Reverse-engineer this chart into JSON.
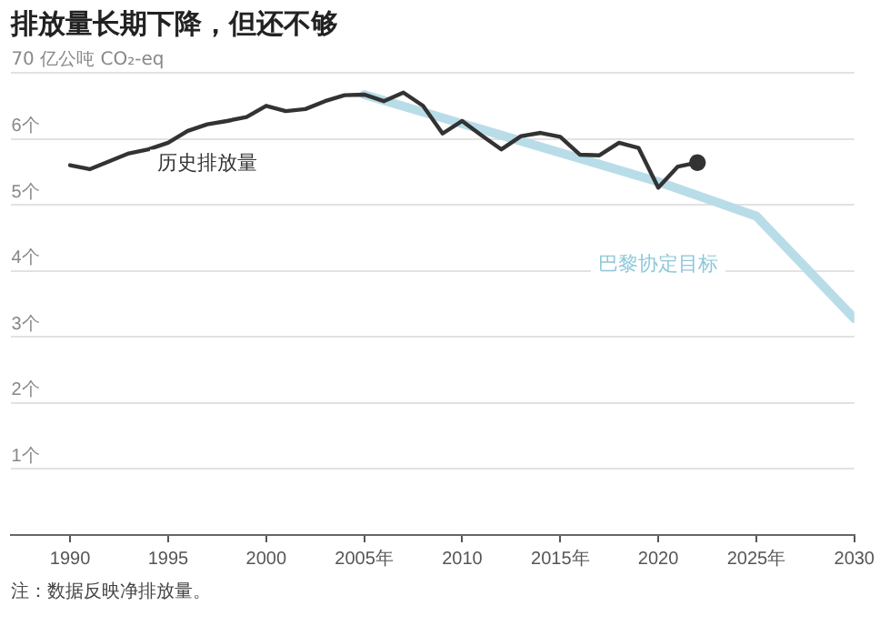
{
  "chart_data": {
    "type": "line",
    "title": "排放量长期下降，但还不够",
    "xlim": [
      1987,
      2030
    ],
    "xticks": [
      1990,
      1995,
      2000,
      {
        "value": 2005,
        "label": "2005年"
      },
      2010,
      {
        "value": 2015,
        "label": "2015年"
      },
      2020,
      {
        "value": 2025,
        "label": "2025年"
      },
      2030
    ],
    "ylim": [
      0,
      7
    ],
    "yticks": [
      {
        "value": 0,
        "label": null
      },
      {
        "value": 1,
        "label": "1个"
      },
      {
        "value": 2,
        "label": "2个"
      },
      {
        "value": 3,
        "label": "3个"
      },
      {
        "value": 4,
        "label": "4个"
      },
      {
        "value": 5,
        "label": "5个"
      },
      {
        "value": 6,
        "label": "6个"
      },
      {
        "value": 7,
        "label": null
      }
    ],
    "ylabel": "70 亿公吨 CO₂-eq",
    "grid": "y",
    "legend": false,
    "series": [
      {
        "name": "历史排放量",
        "color": "#333333",
        "x": [
          1990,
          1991,
          1992,
          1993,
          1994,
          1995,
          1996,
          1997,
          1998,
          1999,
          2000,
          2001,
          2002,
          2003,
          2004,
          2005,
          2006,
          2007,
          2008,
          2009,
          2010,
          2011,
          2012,
          2013,
          2014,
          2015,
          2016,
          2017,
          2018,
          2019,
          2020,
          2021,
          2022
        ],
        "values": [
          5.6,
          5.54,
          5.66,
          5.78,
          5.84,
          5.94,
          6.12,
          6.22,
          6.27,
          6.33,
          6.5,
          6.42,
          6.45,
          6.57,
          6.66,
          6.67,
          6.57,
          6.7,
          6.5,
          6.08,
          6.27,
          6.05,
          5.84,
          6.04,
          6.09,
          6.03,
          5.76,
          5.75,
          5.94,
          5.86,
          5.26,
          5.58,
          5.64
        ]
      },
      {
        "name": "巴黎协定目标",
        "color": "#b9dde8",
        "x": [
          2005,
          2020,
          2025,
          2030
        ],
        "values": [
          6.67,
          5.35,
          4.83,
          3.28
        ]
      }
    ],
    "annotations": [
      "注：数据反映净排放量。"
    ]
  }
}
